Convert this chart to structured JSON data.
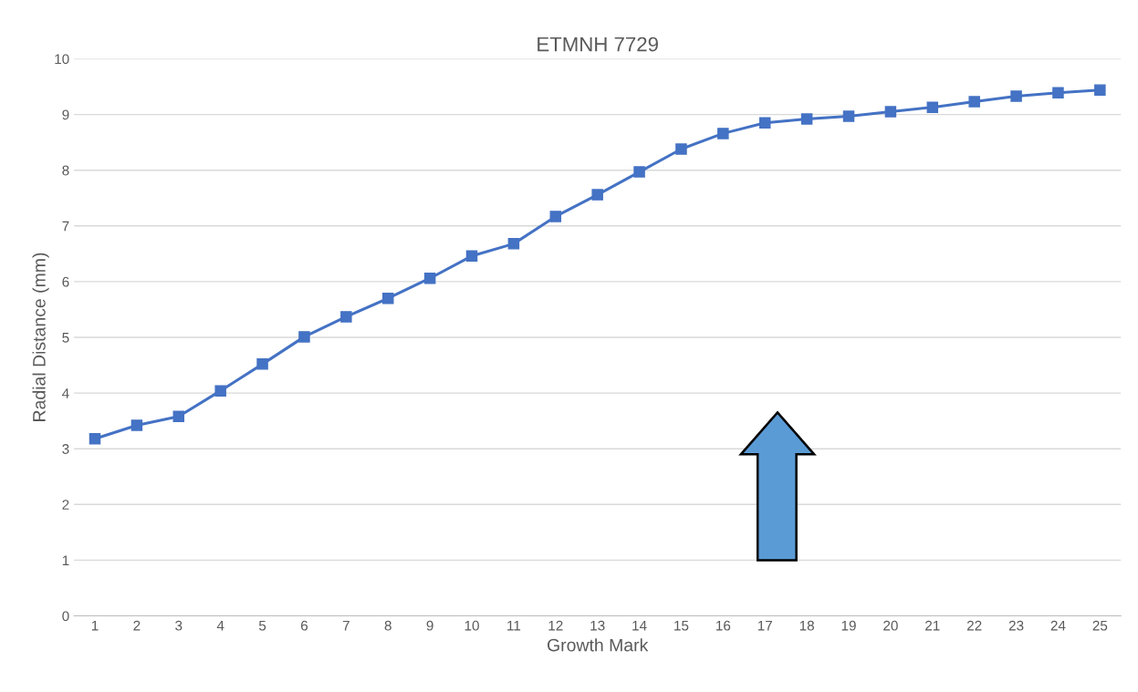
{
  "chart_data": {
    "type": "line",
    "title": "ETMNH 7729",
    "xlabel": "Growth Mark",
    "ylabel": "Radial Distance (mm)",
    "categories": [
      "1",
      "2",
      "3",
      "4",
      "5",
      "6",
      "7",
      "8",
      "9",
      "10",
      "11",
      "12",
      "13",
      "14",
      "15",
      "16",
      "17",
      "18",
      "19",
      "20",
      "21",
      "22",
      "23",
      "24",
      "25"
    ],
    "series": [
      {
        "color": "#4472c4",
        "values": [
          3.18,
          3.42,
          3.58,
          4.04,
          4.52,
          5.01,
          5.37,
          5.7,
          6.06,
          6.46,
          6.68,
          7.17,
          7.56,
          7.97,
          8.38,
          8.66,
          8.85,
          8.92,
          8.97,
          9.05,
          9.13,
          9.23,
          9.33,
          9.39,
          9.44
        ]
      }
    ],
    "ylim": [
      0,
      10
    ],
    "yticks": [
      0,
      1,
      2,
      3,
      4,
      5,
      6,
      7,
      8,
      9,
      10
    ],
    "grid": "y",
    "marker": "square",
    "line_style": "solid",
    "legend": false
  }
}
